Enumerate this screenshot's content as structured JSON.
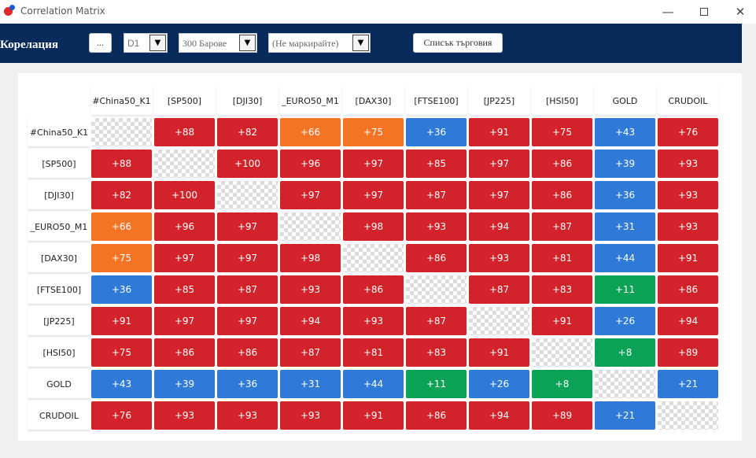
{
  "window": {
    "title": "Correlation Matrix",
    "minimize_glyph": "—",
    "close_glyph": "✕"
  },
  "toolbar": {
    "label": "Корелация",
    "menu_button": "...",
    "timeframe": "D1",
    "bars": "300 Барове",
    "marking": "(Не маркирайте)",
    "trade_list_button": "Списък търговия",
    "dropdown_glyph": "▼"
  },
  "colors": {
    "toolbar_bg": "#062a5a",
    "strong_positive": "#d2232a",
    "moderate_positive": "#f57426",
    "weak_positive": "#2f7ad9",
    "very_weak": "#0aa257"
  },
  "matrix": {
    "symbols": [
      "#China50_K1",
      "[SP500]",
      "[DJI30]",
      "_EURO50_M1",
      "[DAX30]",
      "[FTSE100]",
      "[JP225]",
      "[HSI50]",
      "GOLD",
      "CRUDOIL"
    ],
    "values": [
      [
        null,
        "+88",
        "+82",
        "+66",
        "+75",
        "+36",
        "+91",
        "+75",
        "+43",
        "+76"
      ],
      [
        "+88",
        null,
        "+100",
        "+96",
        "+97",
        "+85",
        "+97",
        "+86",
        "+39",
        "+93"
      ],
      [
        "+82",
        "+100",
        null,
        "+97",
        "+97",
        "+87",
        "+97",
        "+86",
        "+36",
        "+93"
      ],
      [
        "+66",
        "+96",
        "+97",
        null,
        "+98",
        "+93",
        "+94",
        "+87",
        "+31",
        "+93"
      ],
      [
        "+75",
        "+97",
        "+97",
        "+98",
        null,
        "+86",
        "+93",
        "+81",
        "+44",
        "+91"
      ],
      [
        "+36",
        "+85",
        "+87",
        "+93",
        "+86",
        null,
        "+87",
        "+83",
        "+11",
        "+86"
      ],
      [
        "+91",
        "+97",
        "+97",
        "+94",
        "+93",
        "+87",
        null,
        "+91",
        "+26",
        "+94"
      ],
      [
        "+75",
        "+86",
        "+86",
        "+87",
        "+81",
        "+83",
        "+91",
        null,
        "+8",
        "+89"
      ],
      [
        "+43",
        "+39",
        "+36",
        "+31",
        "+44",
        "+11",
        "+26",
        "+8",
        null,
        "+21"
      ],
      [
        "+76",
        "+93",
        "+93",
        "+93",
        "+91",
        "+86",
        "+94",
        "+89",
        "+21",
        null
      ]
    ],
    "cell_colors": [
      [
        "empty",
        "red",
        "red",
        "orange",
        "orange",
        "blue",
        "red",
        "red",
        "blue",
        "red"
      ],
      [
        "red",
        "empty",
        "red",
        "red",
        "red",
        "red",
        "red",
        "red",
        "blue",
        "red"
      ],
      [
        "red",
        "red",
        "empty",
        "red",
        "red",
        "red",
        "red",
        "red",
        "blue",
        "red"
      ],
      [
        "orange",
        "red",
        "red",
        "empty",
        "red",
        "red",
        "red",
        "red",
        "blue",
        "red"
      ],
      [
        "orange",
        "red",
        "red",
        "red",
        "empty",
        "red",
        "red",
        "red",
        "blue",
        "red"
      ],
      [
        "blue",
        "red",
        "red",
        "red",
        "red",
        "empty",
        "red",
        "red",
        "green",
        "red"
      ],
      [
        "red",
        "red",
        "red",
        "red",
        "red",
        "red",
        "empty",
        "red",
        "blue",
        "red"
      ],
      [
        "red",
        "red",
        "red",
        "red",
        "red",
        "red",
        "red",
        "empty",
        "green",
        "red"
      ],
      [
        "blue",
        "blue",
        "blue",
        "blue",
        "blue",
        "green",
        "blue",
        "green",
        "empty",
        "blue"
      ],
      [
        "red",
        "red",
        "red",
        "red",
        "red",
        "red",
        "red",
        "red",
        "blue",
        "empty"
      ]
    ]
  }
}
